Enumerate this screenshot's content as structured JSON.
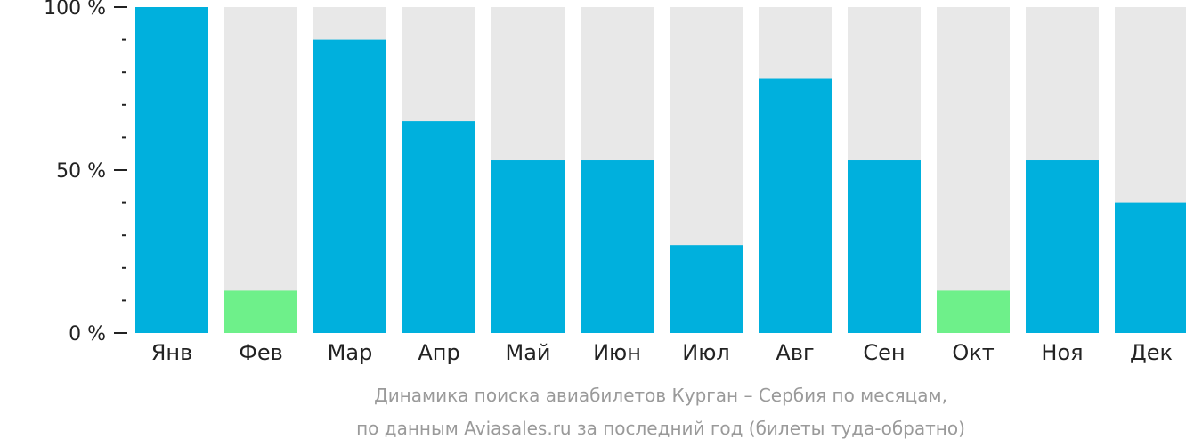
{
  "chart_data": {
    "type": "bar",
    "categories": [
      "Янв",
      "Фев",
      "Мар",
      "Апр",
      "Май",
      "Июн",
      "Июл",
      "Авг",
      "Сен",
      "Окт",
      "Ноя",
      "Дек"
    ],
    "values": [
      100,
      13,
      90,
      65,
      53,
      53,
      27,
      78,
      53,
      13,
      53,
      40
    ],
    "ylim": [
      0,
      100
    ],
    "y_ticks": [
      {
        "value": 100,
        "label": "100 %"
      },
      {
        "value": 50,
        "label": "50 %"
      },
      {
        "value": 0,
        "label": "0 %"
      }
    ],
    "y_minor_ticks": [
      90,
      80,
      70,
      60,
      40,
      30,
      20,
      10
    ],
    "low_threshold": 20,
    "caption_lines": [
      "Динамика поиска авиабилетов Курган – Сербия по месяцам,",
      "по данным Aviasales.ru за последний год (билеты туда-обратно)"
    ],
    "grid": false,
    "legend": "none"
  },
  "colors": {
    "bar": "#00b0dd",
    "bar_low": "#6ef08a",
    "track": "#e8e8e8",
    "axis": "#222222",
    "caption": "#9a9a9a"
  }
}
